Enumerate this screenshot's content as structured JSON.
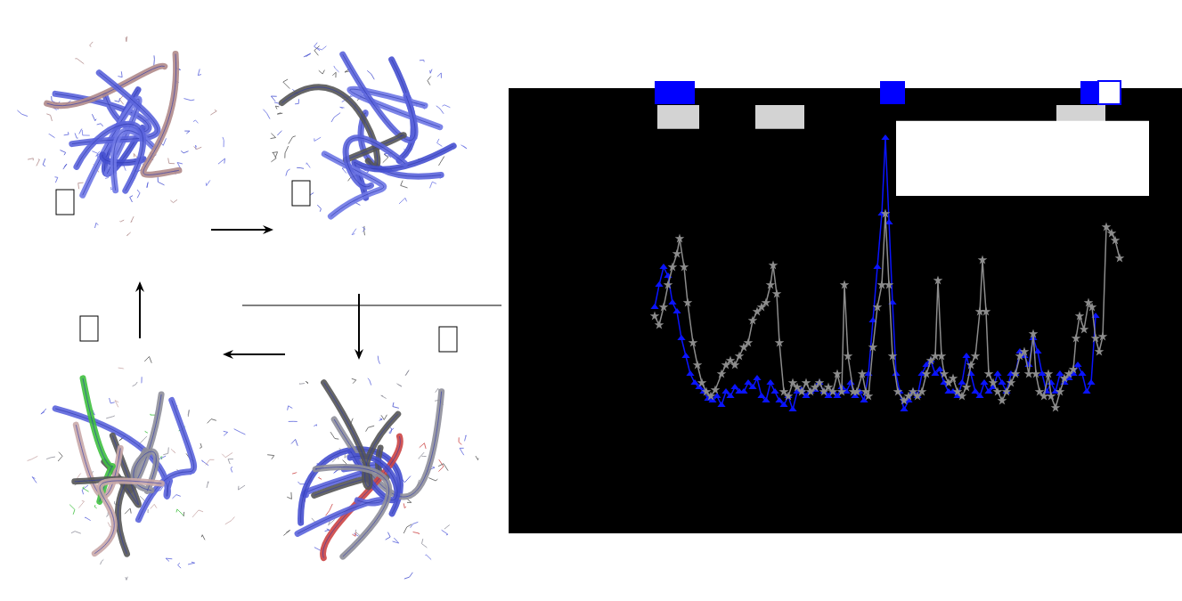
{
  "chart_data": {
    "type": "line",
    "xlim": [
      0,
      755
    ],
    "ylim": [
      0,
      498
    ],
    "xticks": [],
    "yticks": [],
    "tick_labels": false,
    "grid": false,
    "series": [
      {
        "color": "#0a14ff",
        "marker": "triangle-up",
        "x": [
          163,
          168,
          173,
          178,
          183,
          188,
          193,
          198,
          203,
          208,
          213,
          218,
          223,
          228,
          233,
          238,
          243,
          248,
          253,
          258,
          263,
          268,
          273,
          278,
          283,
          288,
          293,
          298,
          303,
          308,
          313,
          318,
          323,
          328,
          333,
          338,
          343,
          348,
          353,
          358,
          363,
          368,
          373,
          378,
          383,
          388,
          393,
          398,
          403,
          408,
          413,
          418,
          422,
          426,
          430,
          434,
          438,
          443,
          448,
          453,
          458,
          463,
          468,
          473,
          478,
          483,
          488,
          493,
          498,
          503,
          508,
          513,
          518,
          523,
          528,
          533,
          538,
          543,
          548,
          553,
          558,
          563,
          568,
          573,
          578,
          583,
          588,
          593,
          598,
          603,
          608,
          613,
          618,
          623,
          628,
          633,
          638,
          643,
          648,
          653,
          658
        ],
        "values": [
          253,
          278,
          298,
          288,
          258,
          248,
          218,
          198,
          178,
          168,
          163,
          158,
          150,
          148,
          153,
          143,
          158,
          153,
          163,
          158,
          158,
          168,
          163,
          173,
          153,
          148,
          168,
          158,
          148,
          143,
          153,
          138,
          158,
          160,
          153,
          158,
          160,
          168,
          158,
          153,
          158,
          153,
          163,
          158,
          168,
          153,
          158,
          148,
          178,
          238,
          298,
          358,
          443,
          348,
          258,
          178,
          158,
          138,
          148,
          158,
          153,
          178,
          188,
          193,
          178,
          183,
          168,
          158,
          158,
          153,
          168,
          198,
          178,
          158,
          153,
          168,
          158,
          163,
          178,
          168,
          158,
          178,
          178,
          203,
          198,
          188,
          218,
          203,
          178,
          158,
          168,
          158,
          178,
          168,
          173,
          178,
          188,
          178,
          158,
          168,
          243
        ]
      },
      {
        "color": "#8c8c8c",
        "marker": "star",
        "x": [
          163,
          168,
          173,
          178,
          183,
          188,
          191,
          196,
          200,
          206,
          211,
          216,
          221,
          226,
          231,
          238,
          243,
          248,
          253,
          258,
          263,
          268,
          273,
          278,
          283,
          288,
          293,
          296,
          300,
          303,
          308,
          313,
          318,
          323,
          328,
          333,
          338,
          343,
          348,
          353,
          358,
          363,
          368,
          373,
          376,
          380,
          386,
          390,
          396,
          400,
          403,
          408,
          413,
          418,
          422,
          426,
          430,
          436,
          443,
          448,
          453,
          458,
          463,
          468,
          473,
          478,
          481,
          485,
          488,
          493,
          498,
          503,
          508,
          513,
          518,
          523,
          528,
          531,
          535,
          538,
          543,
          548,
          553,
          558,
          563,
          568,
          573,
          578,
          583,
          588,
          591,
          595,
          600,
          605,
          608,
          613,
          618,
          623,
          628,
          633,
          636,
          640,
          645,
          650,
          654,
          658,
          662,
          666,
          670,
          676,
          680,
          685
        ],
        "values": [
          243,
          233,
          253,
          278,
          298,
          313,
          330,
          298,
          258,
          213,
          188,
          168,
          158,
          153,
          160,
          178,
          188,
          193,
          188,
          198,
          208,
          213,
          238,
          248,
          253,
          258,
          278,
          300,
          268,
          213,
          158,
          153,
          168,
          163,
          158,
          168,
          158,
          163,
          168,
          158,
          163,
          158,
          178,
          158,
          278,
          198,
          158,
          158,
          178,
          158,
          153,
          208,
          253,
          278,
          358,
          278,
          198,
          158,
          148,
          153,
          158,
          153,
          158,
          178,
          193,
          198,
          283,
          198,
          178,
          168,
          173,
          158,
          153,
          163,
          188,
          198,
          248,
          306,
          248,
          178,
          168,
          158,
          148,
          158,
          168,
          178,
          198,
          203,
          178,
          223,
          178,
          158,
          153,
          178,
          153,
          140,
          158,
          173,
          178,
          183,
          218,
          243,
          228,
          258,
          253,
          218,
          203,
          220,
          343,
          336,
          328,
          308
        ]
      }
    ],
    "regions": [
      {
        "series": 0,
        "color": "#0000ff",
        "x": [
          163,
          208
        ],
        "filled": true
      },
      {
        "series": 0,
        "color": "#0000ff",
        "x": [
          416,
          444
        ],
        "filled": true
      },
      {
        "series": 0,
        "color": "#0000ff",
        "x": [
          641,
          661
        ],
        "filled": true
      },
      {
        "series": 0,
        "color": "#0000ff",
        "x": [
          661,
          686
        ],
        "filled": false
      },
      {
        "series": 1,
        "color": "#d3d3d3",
        "x": [
          166,
          213
        ],
        "filled": true
      },
      {
        "series": 1,
        "color": "#d3d3d3",
        "x": [
          276,
          331
        ],
        "filled": true
      },
      {
        "series": 1,
        "color": "#d3d3d3",
        "x": [
          614,
          669
        ],
        "filled": true
      }
    ]
  }
}
